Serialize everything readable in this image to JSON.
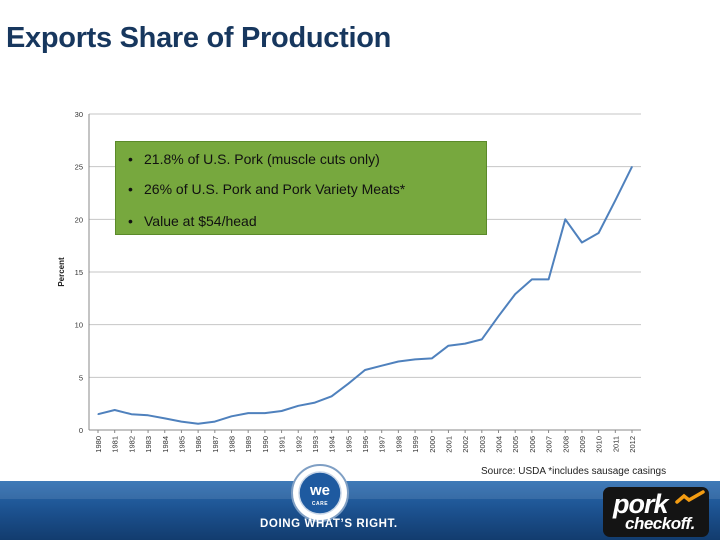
{
  "title": "Exports Share of Production",
  "chart_data": {
    "type": "line",
    "ylabel": "Percent",
    "xlabel": "",
    "ylim": [
      0,
      30
    ],
    "yticks": [
      0,
      5,
      10,
      15,
      20,
      25,
      30
    ],
    "grid": true,
    "x": [
      "1980",
      "1981",
      "1982",
      "1983",
      "1984",
      "1985",
      "1986",
      "1987",
      "1988",
      "1989",
      "1990",
      "1991",
      "1992",
      "1993",
      "1994",
      "1995",
      "1996",
      "1997",
      "1998",
      "1999",
      "2000",
      "2001",
      "2002",
      "2003",
      "2004",
      "2005",
      "2006",
      "2007",
      "2008",
      "2009",
      "2010",
      "2011",
      "2012"
    ],
    "series": [
      {
        "values": [
          1.5,
          1.9,
          1.5,
          1.4,
          1.1,
          0.8,
          0.6,
          0.8,
          1.3,
          1.6,
          1.6,
          1.8,
          2.3,
          2.6,
          3.2,
          4.4,
          5.7,
          6.1,
          6.5,
          6.7,
          6.8,
          8.0,
          8.2,
          8.6,
          10.8,
          12.9,
          14.3,
          14.3,
          20.0,
          17.8,
          18.7,
          21.8,
          25.0
        ]
      }
    ],
    "line_color": "#4f81bd"
  },
  "callout": {
    "bullet": "•",
    "items": [
      "21.8% of U.S. Pork (muscle cuts only)",
      "26% of U.S. Pork and Pork Variety Meats*",
      "Value at $54/head"
    ],
    "background": "#77a83e"
  },
  "source": "Source: USDA   *includes sausage casings",
  "footer": {
    "tagline": "DOING WHAT’S RIGHT.",
    "seal_text": "WE CARE",
    "logo_line1": "pork",
    "logo_line2": "checkoff."
  }
}
